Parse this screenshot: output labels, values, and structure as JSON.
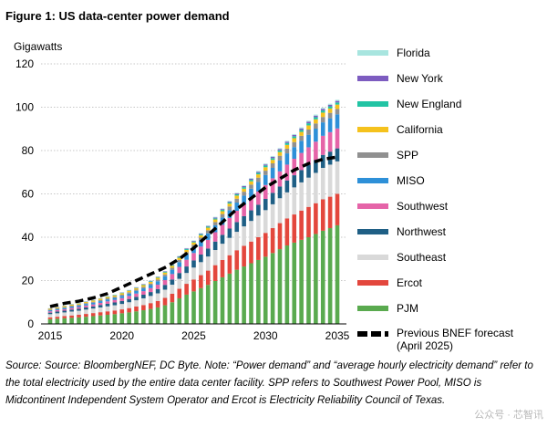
{
  "header": {
    "title": "Figure 1:  US data-center power demand"
  },
  "chart_data": {
    "type": "bar",
    "stacked": true,
    "title": "Figure 1:  US data-center power demand",
    "ylabel": "Gigawatts",
    "xlabel": "",
    "ylim": [
      0,
      120
    ],
    "yticks": [
      0,
      20,
      40,
      60,
      80,
      100,
      120
    ],
    "xtick_labels": [
      "2015",
      "2020",
      "2025",
      "2030",
      "2035"
    ],
    "grid": "horizontal dotted",
    "legend_position": "right",
    "x": [
      2015,
      2015.5,
      2016,
      2016.5,
      2017,
      2017.5,
      2018,
      2018.5,
      2019,
      2019.5,
      2020,
      2020.5,
      2021,
      2021.5,
      2022,
      2022.5,
      2023,
      2023.5,
      2024,
      2024.5,
      2025,
      2025.5,
      2026,
      2026.5,
      2027,
      2027.5,
      2028,
      2028.5,
      2029,
      2029.5,
      2030,
      2030.5,
      2031,
      2031.5,
      2032,
      2032.5,
      2033,
      2033.5,
      2034,
      2034.5,
      2035
    ],
    "series": [
      {
        "name": "PJM",
        "color": "#5aaa4f",
        "values": [
          2.2,
          2.4,
          2.6,
          2.8,
          3.0,
          3.3,
          3.6,
          3.9,
          4.2,
          4.5,
          4.9,
          5.3,
          5.8,
          6.3,
          6.9,
          7.6,
          8.6,
          10.0,
          11.8,
          13.5,
          15.0,
          16.5,
          18.0,
          19.8,
          21.5,
          23.2,
          25.0,
          26.5,
          28.0,
          29.5,
          31.0,
          32.7,
          34.5,
          36.2,
          37.5,
          38.8,
          40.0,
          41.5,
          43.0,
          44.2,
          45.5
        ]
      },
      {
        "name": "Ercot",
        "color": "#e3473d",
        "values": [
          0.8,
          0.9,
          1.0,
          1.1,
          1.2,
          1.3,
          1.4,
          1.5,
          1.6,
          1.7,
          1.8,
          2.0,
          2.2,
          2.4,
          2.7,
          3.0,
          3.4,
          3.9,
          4.4,
          5.0,
          5.5,
          6.0,
          6.6,
          7.3,
          8.0,
          8.5,
          9.0,
          9.5,
          10.0,
          10.5,
          11.0,
          11.5,
          12.0,
          12.5,
          13.0,
          13.5,
          14.0,
          14.2,
          14.5,
          14.5,
          14.5
        ]
      },
      {
        "name": "Southeast",
        "color": "#d9d9d9",
        "values": [
          1.5,
          1.6,
          1.7,
          1.8,
          1.9,
          2.0,
          2.1,
          2.2,
          2.3,
          2.4,
          2.5,
          2.7,
          2.9,
          3.1,
          3.3,
          3.5,
          3.8,
          4.2,
          4.6,
          5.0,
          5.5,
          6.0,
          6.5,
          7.0,
          7.5,
          8.0,
          8.5,
          9.0,
          9.5,
          10.0,
          10.5,
          11.0,
          11.5,
          12.0,
          12.5,
          13.0,
          13.5,
          14.0,
          14.5,
          14.8,
          15.0
        ]
      },
      {
        "name": "Northwest",
        "color": "#1f5f85",
        "values": [
          0.7,
          0.8,
          0.8,
          0.9,
          0.9,
          1.0,
          1.0,
          1.1,
          1.2,
          1.3,
          1.4,
          1.5,
          1.6,
          1.7,
          1.8,
          2.0,
          2.2,
          2.4,
          2.7,
          3.0,
          3.3,
          3.5,
          3.7,
          3.9,
          4.1,
          4.3,
          4.5,
          4.7,
          4.9,
          5.0,
          5.2,
          5.3,
          5.4,
          5.5,
          5.6,
          5.7,
          5.8,
          5.9,
          6.0,
          6.0,
          6.0
        ]
      },
      {
        "name": "Southwest",
        "color": "#e564a8",
        "values": [
          0.6,
          0.7,
          0.7,
          0.8,
          0.8,
          0.9,
          0.9,
          1.0,
          1.1,
          1.2,
          1.3,
          1.4,
          1.5,
          1.6,
          1.8,
          2.0,
          2.2,
          2.5,
          2.8,
          3.1,
          3.4,
          3.7,
          4.0,
          4.3,
          4.6,
          4.9,
          5.2,
          5.5,
          5.8,
          6.1,
          6.4,
          6.7,
          7.0,
          7.3,
          7.6,
          7.9,
          8.2,
          8.5,
          8.8,
          9.0,
          9.2
        ]
      },
      {
        "name": "MISO",
        "color": "#2e90d8",
        "values": [
          0.5,
          0.5,
          0.6,
          0.6,
          0.7,
          0.7,
          0.8,
          0.8,
          0.9,
          0.9,
          1.0,
          1.1,
          1.2,
          1.3,
          1.4,
          1.6,
          1.8,
          2.0,
          2.2,
          2.4,
          2.6,
          2.8,
          3.0,
          3.2,
          3.4,
          3.6,
          3.8,
          4.0,
          4.2,
          4.4,
          4.6,
          4.8,
          5.0,
          5.2,
          5.4,
          5.6,
          5.8,
          6.0,
          6.2,
          6.4,
          6.5
        ]
      },
      {
        "name": "SPP",
        "color": "#909090",
        "values": [
          0.3,
          0.3,
          0.3,
          0.4,
          0.4,
          0.4,
          0.4,
          0.5,
          0.5,
          0.5,
          0.6,
          0.6,
          0.6,
          0.7,
          0.7,
          0.8,
          0.8,
          0.9,
          1.0,
          1.1,
          1.2,
          1.3,
          1.4,
          1.5,
          1.6,
          1.7,
          1.8,
          1.8,
          1.9,
          2.0,
          2.0,
          2.1,
          2.2,
          2.2,
          2.3,
          2.3,
          2.4,
          2.4,
          2.5,
          2.5,
          2.5
        ]
      },
      {
        "name": "California",
        "color": "#f5c21d",
        "values": [
          0.4,
          0.4,
          0.5,
          0.5,
          0.5,
          0.5,
          0.6,
          0.6,
          0.6,
          0.6,
          0.7,
          0.7,
          0.7,
          0.8,
          0.8,
          0.8,
          0.9,
          0.9,
          1.0,
          1.0,
          1.1,
          1.1,
          1.2,
          1.2,
          1.3,
          1.3,
          1.4,
          1.4,
          1.5,
          1.5,
          1.6,
          1.6,
          1.7,
          1.7,
          1.8,
          1.8,
          1.9,
          1.9,
          2.0,
          2.0,
          2.0
        ]
      },
      {
        "name": "New England",
        "color": "#22c4a4",
        "values": [
          0.1,
          0.1,
          0.1,
          0.1,
          0.1,
          0.1,
          0.1,
          0.1,
          0.2,
          0.2,
          0.2,
          0.2,
          0.2,
          0.2,
          0.3,
          0.3,
          0.3,
          0.3,
          0.4,
          0.4,
          0.4,
          0.5,
          0.5,
          0.5,
          0.6,
          0.6,
          0.6,
          0.7,
          0.7,
          0.7,
          0.8,
          0.8,
          0.8,
          0.9,
          0.9,
          0.9,
          1.0,
          1.0,
          1.0,
          1.0,
          1.0
        ]
      },
      {
        "name": "New York",
        "color": "#7d5cc0",
        "values": [
          0.1,
          0.1,
          0.1,
          0.1,
          0.1,
          0.1,
          0.1,
          0.1,
          0.1,
          0.1,
          0.1,
          0.1,
          0.2,
          0.2,
          0.2,
          0.2,
          0.2,
          0.2,
          0.3,
          0.3,
          0.3,
          0.3,
          0.3,
          0.4,
          0.4,
          0.4,
          0.4,
          0.5,
          0.5,
          0.5,
          0.5,
          0.6,
          0.6,
          0.6,
          0.6,
          0.7,
          0.7,
          0.7,
          0.7,
          0.7,
          0.7
        ]
      },
      {
        "name": "Florida",
        "color": "#a8e5df",
        "values": [
          0.1,
          0.1,
          0.1,
          0.1,
          0.1,
          0.1,
          0.1,
          0.1,
          0.1,
          0.1,
          0.1,
          0.1,
          0.1,
          0.1,
          0.1,
          0.1,
          0.2,
          0.2,
          0.2,
          0.2,
          0.2,
          0.2,
          0.2,
          0.3,
          0.3,
          0.3,
          0.3,
          0.3,
          0.3,
          0.4,
          0.4,
          0.4,
          0.4,
          0.4,
          0.4,
          0.5,
          0.5,
          0.5,
          0.5,
          0.5,
          0.5
        ]
      }
    ],
    "overlay_line": {
      "name": "Previous BNEF forecast\n(April 2025)",
      "style": "dashed",
      "color": "#000000",
      "x": [
        2015,
        2016,
        2017,
        2018,
        2019,
        2020,
        2021,
        2022,
        2023,
        2024,
        2025,
        2026,
        2027,
        2028,
        2029,
        2030,
        2031,
        2032,
        2033,
        2034,
        2035
      ],
      "y": [
        8,
        9.5,
        10.5,
        12,
        14,
        17,
        20,
        23,
        26,
        30,
        35,
        41,
        47,
        53,
        58,
        63,
        67,
        71,
        74,
        76,
        77
      ]
    },
    "legend": [
      "Florida",
      "New York",
      "New England",
      "California",
      "SPP",
      "MISO",
      "Southwest",
      "Northwest",
      "Southeast",
      "Ercot",
      "PJM",
      "Previous BNEF forecast\n(April 2025)"
    ]
  },
  "source_note": "Source: Source: BloombergNEF, DC Byte. Note: “Power demand” and “average hourly electricity demand” refer to the total electricity used by the entire data center facility. SPP refers to Southwest Power Pool, MISO is Midcontinent Independent System Operator and Ercot is Electricity Reliability Council of Texas.",
  "watermark": "公众号 · 芯智讯"
}
